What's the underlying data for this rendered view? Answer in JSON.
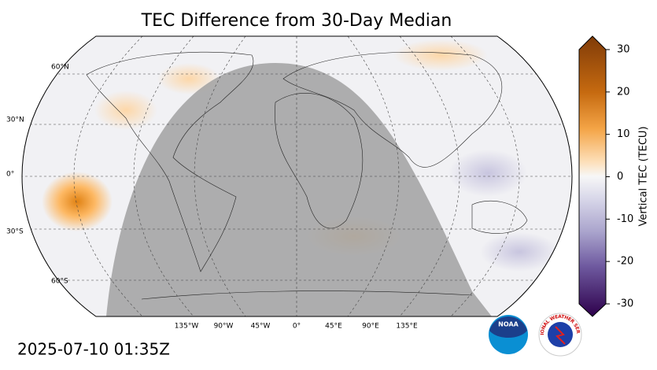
{
  "title": "TEC Difference from 30-Day Median",
  "lat_labels": [
    "60°N",
    "30°N",
    "0°",
    "30°S",
    "60°S"
  ],
  "lon_labels": [
    "135°W",
    "90°W",
    "45°W",
    "0°",
    "45°E",
    "90°E",
    "135°E"
  ],
  "colorbar": {
    "label": "Vertical TEC (TECU)",
    "ticks": [
      30,
      20,
      10,
      0,
      -10,
      -20,
      -30
    ]
  },
  "timestamp": "2025-07-10 01:35Z",
  "logos": {
    "noaa": "NOAA",
    "nws": "NATIONAL WEATHER SERVICE"
  }
}
